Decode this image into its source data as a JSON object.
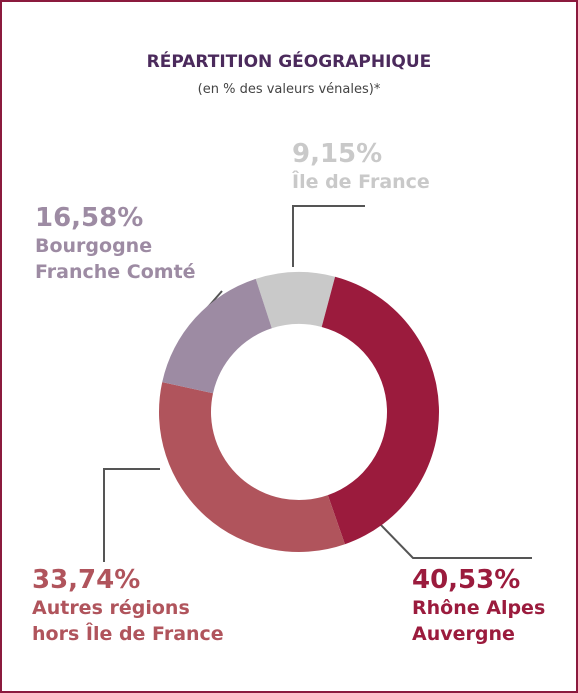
{
  "chart_data": {
    "type": "donut",
    "title": "RÉPARTITION GÉOGRAPHIQUE",
    "subtitle": "(en % des valeurs vénales)*",
    "categories": [
      "Île de France",
      "Rhône Alpes\nAuvergne",
      "Autres régions\nhors Île de France",
      "Bourgogne\nFranche Comté"
    ],
    "values": [
      9.15,
      40.53,
      33.74,
      16.58
    ],
    "value_labels": [
      "9,15%",
      "40,53%",
      "33,74%",
      "16,58%"
    ],
    "colors": [
      "#c9c9c9",
      "#9b1b3d",
      "#b0545c",
      "#9d8ba3"
    ]
  }
}
